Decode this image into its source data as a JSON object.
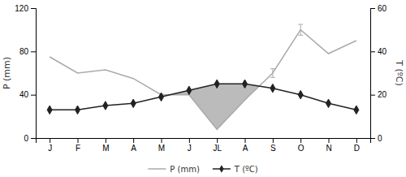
{
  "chart_data": {
    "type": "line",
    "categories": [
      "J",
      "F",
      "M",
      "A",
      "M",
      "J",
      "JL",
      "A",
      "S",
      "O",
      "N",
      "D"
    ],
    "series": [
      {
        "name": "P (mm)",
        "color": "#aaaaaa",
        "values": [
          75,
          60,
          63,
          55,
          40,
          40,
          8,
          35,
          60,
          100,
          78,
          90
        ],
        "errors": [
          null,
          null,
          null,
          null,
          null,
          null,
          null,
          null,
          4,
          5,
          null,
          null
        ]
      },
      {
        "name": "T (ºC)",
        "color": "#222222",
        "axis": "y2",
        "marker": "diamond",
        "values": [
          13,
          13,
          15,
          16,
          19,
          22,
          25,
          25,
          23,
          20,
          16,
          13
        ]
      }
    ],
    "color": "#bbbbbb",
    "ylabel": "P (mm)",
    "y2label": "T (ºC)",
    "ylim": [
      0,
      120
    ],
    "yticks": [
      0,
      40,
      80,
      120
    ],
    "y2lim": [
      0,
      60
    ],
    "y2ticks": [
      0,
      20,
      40,
      60
    ],
    "grid": false,
    "legend": "bottom"
  }
}
